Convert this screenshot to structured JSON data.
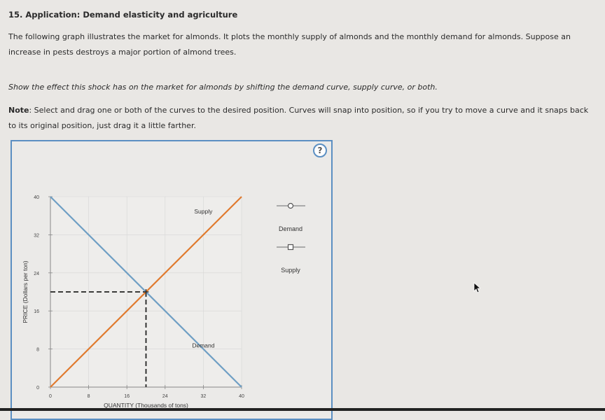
{
  "question": {
    "title": "15. Application: Demand elasticity and agriculture",
    "intro": "The following graph illustrates the market for almonds. It plots the monthly supply of almonds and the monthly demand for almonds. Suppose an increase in pests destroys a major portion of almond trees.",
    "instruction": "Show the effect this shock has on the market for almonds by shifting the demand curve, supply curve, or both.",
    "note_label": "Note",
    "note_text": ": Select and drag one or both of the curves to the desired position. Curves will snap into position, so if you try to move a curve and it snaps back to its original position, just drag it a little farther."
  },
  "help_label": "?",
  "legend": {
    "demand": {
      "label": "Demand",
      "marker": "circle",
      "color": "#6f9fc4"
    },
    "supply": {
      "label": "Supply",
      "marker": "square",
      "color": "#e07a2e"
    }
  },
  "chart_data": {
    "type": "line",
    "xlabel": "QUANTITY (Thousands of tons)",
    "ylabel": "PRICE (Dollars per ton)",
    "xlim": [
      0,
      40
    ],
    "ylim": [
      0,
      40
    ],
    "xticks": [
      "0",
      "8",
      "16",
      "24",
      "32",
      "40"
    ],
    "yticks": [
      "0",
      "8",
      "16",
      "24",
      "32",
      "40"
    ],
    "grid": true,
    "series": [
      {
        "name": "Demand",
        "color": "#6f9fc4",
        "x": [
          0,
          40
        ],
        "y": [
          40,
          0
        ]
      },
      {
        "name": "Supply",
        "color": "#e07a2e",
        "x": [
          0,
          40
        ],
        "y": [
          0,
          40
        ]
      }
    ],
    "equilibrium": {
      "x": 20,
      "y": 20
    }
  }
}
